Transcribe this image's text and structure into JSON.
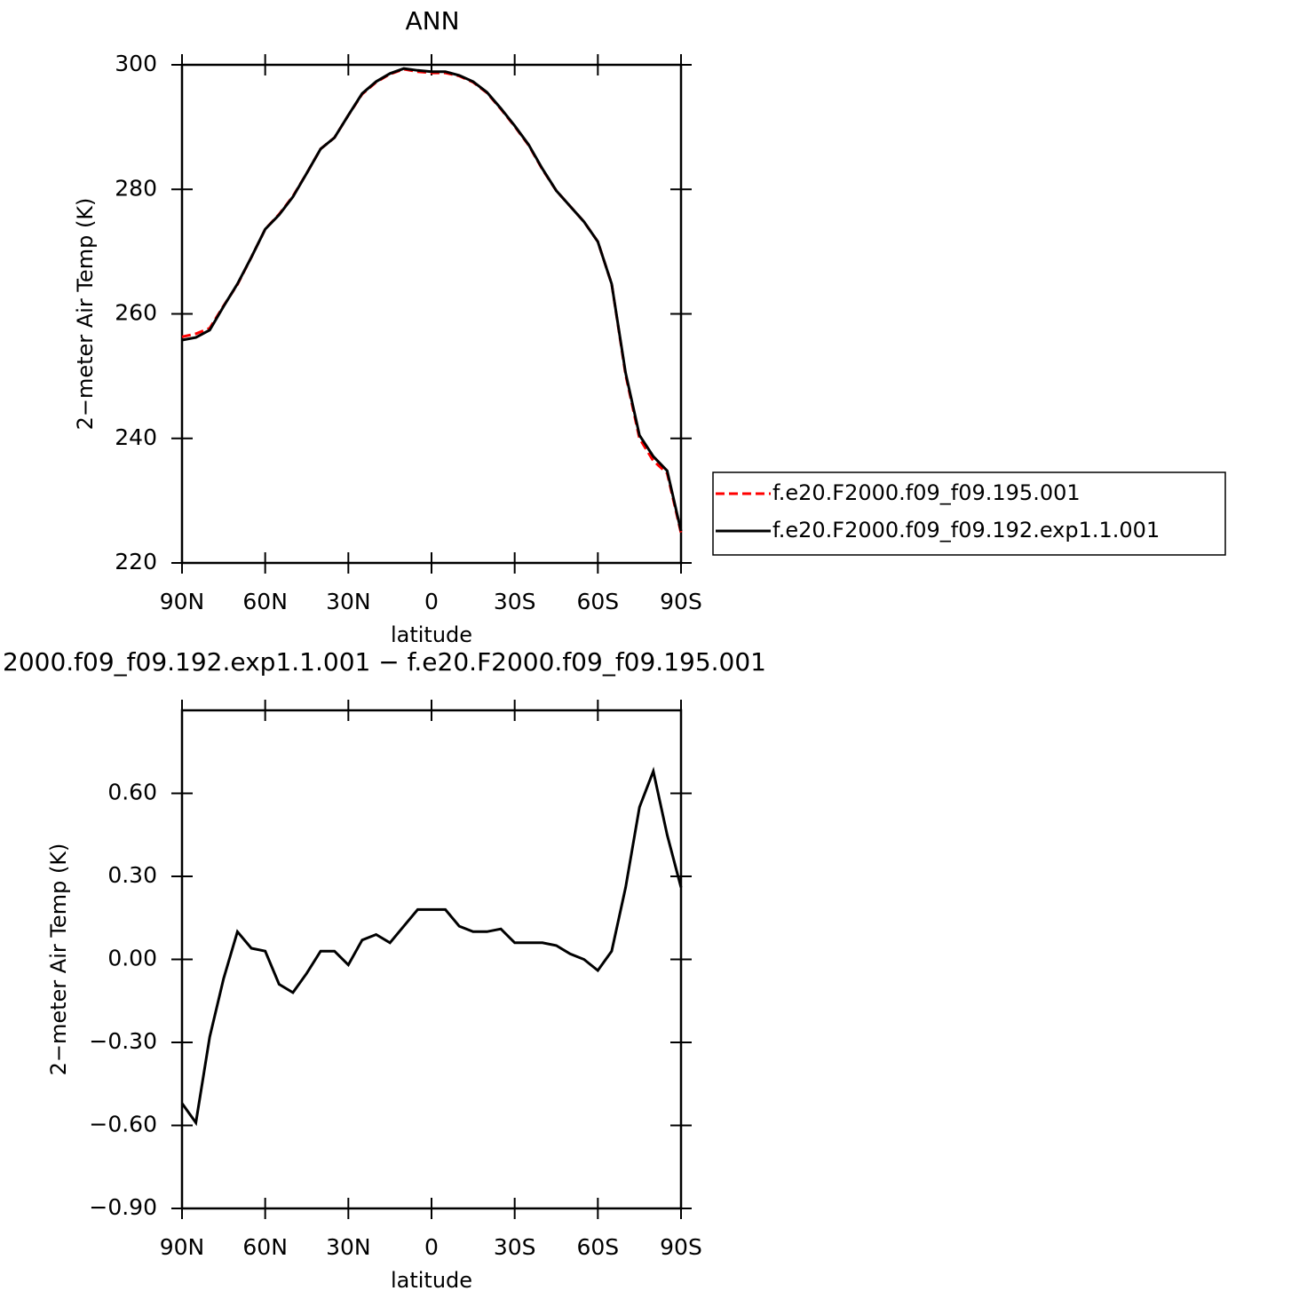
{
  "chart_data": [
    {
      "type": "line",
      "title": "ANN",
      "xlabel": "latitude",
      "ylabel": "2−meter Air Temp (K)",
      "x": [
        90,
        85,
        80,
        75,
        70,
        65,
        60,
        55,
        50,
        45,
        40,
        35,
        30,
        25,
        20,
        15,
        10,
        5,
        0,
        -5,
        -10,
        -15,
        -20,
        -25,
        -30,
        -35,
        -40,
        -45,
        -50,
        -55,
        -60,
        -65,
        -70,
        -75,
        -80,
        -85,
        -90
      ],
      "xlim": [
        90,
        -90
      ],
      "xticks": [
        {
          "value": 90,
          "label": "90N"
        },
        {
          "value": 60,
          "label": "60N"
        },
        {
          "value": 30,
          "label": "30N"
        },
        0,
        {
          "value": -30,
          "label": "30S"
        },
        {
          "value": -60,
          "label": "60S"
        },
        {
          "value": -90,
          "label": "90S"
        }
      ],
      "ylim": [
        220,
        300
      ],
      "yticks": [
        220,
        240,
        260,
        280,
        300
      ],
      "series": [
        {
          "name": "f.e20.F2000.f09_f09.195.001",
          "color": "#ff0000",
          "linestyle": "dashed",
          "values": [
            256.3,
            256.8,
            257.7,
            261.3,
            264.7,
            269.1,
            273.6,
            276.0,
            278.9,
            282.6,
            286.5,
            288.3,
            291.9,
            295.3,
            297.2,
            298.5,
            299.3,
            298.9,
            298.7,
            298.7,
            298.2,
            297.2,
            295.5,
            292.9,
            290.1,
            287.1,
            283.2,
            279.8,
            277.3,
            274.8,
            271.6,
            264.8,
            250.2,
            240.0,
            236.4,
            234.4,
            224.8
          ]
        },
        {
          "name": "f.e20.F2000.f09_f09.192.exp1.1.001",
          "color": "#000000",
          "linestyle": "solid",
          "values": [
            255.8,
            256.2,
            257.4,
            261.2,
            264.8,
            269.1,
            273.6,
            275.9,
            278.8,
            282.6,
            286.5,
            288.3,
            291.9,
            295.4,
            297.3,
            298.6,
            299.4,
            299.1,
            298.9,
            298.9,
            298.3,
            297.3,
            295.6,
            293.0,
            290.2,
            287.2,
            283.3,
            279.8,
            277.3,
            274.8,
            271.6,
            264.8,
            250.5,
            240.5,
            237.1,
            234.8,
            225.1
          ]
        }
      ]
    },
    {
      "type": "line",
      "title": "2000.f09_f09.192.exp1.1.001 − f.e20.F2000.f09_f09.195.001",
      "xlabel": "latitude",
      "ylabel": "2−meter Air Temp (K)",
      "x": [
        90,
        85,
        80,
        75,
        70,
        65,
        60,
        55,
        50,
        45,
        40,
        35,
        30,
        25,
        20,
        15,
        10,
        5,
        0,
        -5,
        -10,
        -15,
        -20,
        -25,
        -30,
        -35,
        -40,
        -45,
        -50,
        -55,
        -60,
        -65,
        -70,
        -75,
        -80,
        -85,
        -90
      ],
      "xlim": [
        90,
        -90
      ],
      "xticks": [
        {
          "value": 90,
          "label": "90N"
        },
        {
          "value": 60,
          "label": "60N"
        },
        {
          "value": 30,
          "label": "30N"
        },
        0,
        {
          "value": -30,
          "label": "30S"
        },
        {
          "value": -60,
          "label": "60S"
        },
        {
          "value": -90,
          "label": "90S"
        }
      ],
      "ylim": [
        -0.9,
        0.9
      ],
      "yticks": [
        {
          "value": -0.9,
          "label": "−0.90"
        },
        {
          "value": -0.6,
          "label": "−0.60"
        },
        {
          "value": -0.3,
          "label": "−0.30"
        },
        {
          "value": 0,
          "label": "0.00"
        },
        {
          "value": 0.3,
          "label": "0.30"
        },
        {
          "value": 0.6,
          "label": "0.60"
        }
      ],
      "color": "#000000",
      "values": [
        -0.52,
        -0.59,
        -0.28,
        -0.07,
        0.1,
        0.04,
        0.03,
        -0.09,
        -0.12,
        -0.05,
        0.03,
        0.03,
        -0.02,
        0.07,
        0.09,
        0.06,
        0.12,
        0.18,
        0.18,
        0.18,
        0.12,
        0.1,
        0.1,
        0.11,
        0.06,
        0.06,
        0.06,
        0.05,
        0.02,
        0.0,
        -0.04,
        0.03,
        0.26,
        0.55,
        0.68,
        0.45,
        0.26
      ]
    }
  ]
}
